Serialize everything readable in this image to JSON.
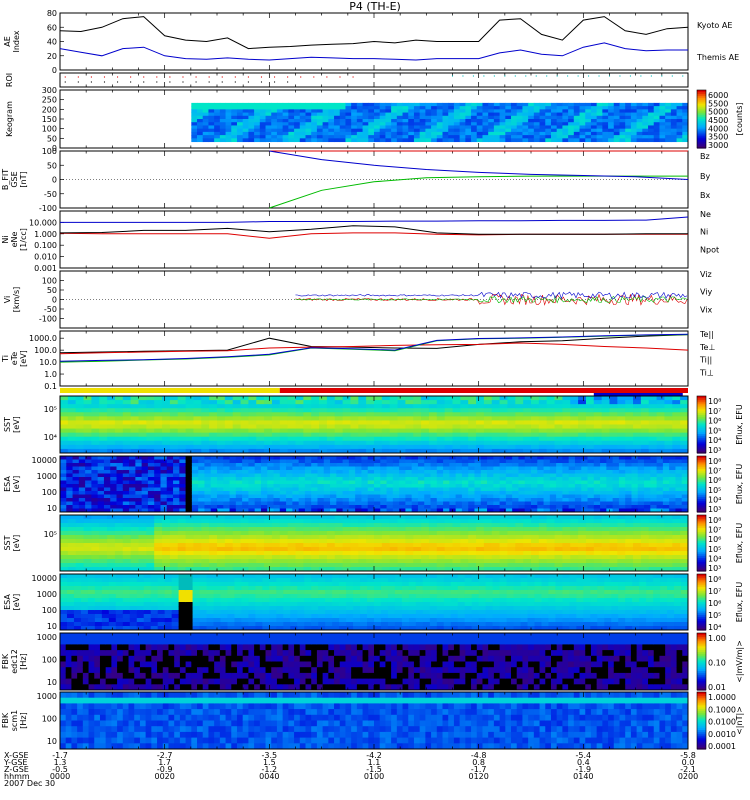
{
  "title": "P4 (TH-E)",
  "colors": {
    "black": "#000000",
    "blue": "#0000cc",
    "red": "#dd0000",
    "green": "#00bb00",
    "cyan": "#00bbbb",
    "yellow": "#f0e000",
    "grey": "#888888"
  },
  "time_axis": {
    "row_labels": [
      "X-GSE",
      "Y-GSE",
      "Z-GSE",
      "hhmm",
      "2007 Dec 30"
    ],
    "ticks": [
      {
        "x_gse": "-1.7",
        "y_gse": "1.3",
        "z_gse": "-0.5",
        "hhmm": "0000"
      },
      {
        "x_gse": "-2.7",
        "y_gse": "1.7",
        "z_gse": "-0.9",
        "hhmm": "0020"
      },
      {
        "x_gse": "-3.5",
        "y_gse": "1.5",
        "z_gse": "-1.2",
        "hhmm": "0040"
      },
      {
        "x_gse": "-4.2",
        "y_gse": "1.1",
        "z_gse": "-1.5",
        "hhmm": "0100"
      },
      {
        "x_gse": "-4.8",
        "y_gse": "0.8",
        "z_gse": "-1.7",
        "hhmm": "0120"
      },
      {
        "x_gse": "-5.4",
        "y_gse": "0.4",
        "z_gse": "-1.9",
        "hhmm": "0140"
      },
      {
        "x_gse": "-5.8",
        "y_gse": "0.0",
        "z_gse": "-2.1",
        "hhmm": "0200"
      }
    ]
  },
  "chart_data": [
    {
      "id": "ae",
      "type": "line",
      "ylabel": "AE Index",
      "ylim": [
        0,
        80
      ],
      "yticks": [
        "0",
        "20",
        "40",
        "60",
        "80"
      ],
      "x": [
        0,
        4,
        8,
        12,
        16,
        20,
        24,
        28,
        32,
        36,
        40,
        44,
        48,
        52,
        56,
        60,
        64,
        68,
        72,
        76,
        80,
        84,
        88,
        92,
        96,
        100,
        104,
        108,
        112,
        116,
        120
      ],
      "series": [
        {
          "name": "Kyoto AE",
          "color": "#000000",
          "values": [
            55,
            54,
            60,
            72,
            75,
            48,
            42,
            40,
            45,
            30,
            32,
            33,
            35,
            36,
            37,
            40,
            38,
            42,
            40,
            40,
            40,
            70,
            72,
            50,
            42,
            70,
            75,
            55,
            50,
            58,
            60
          ]
        },
        {
          "name": "Themis AE",
          "color": "#0000cc",
          "values": [
            30,
            25,
            20,
            30,
            32,
            20,
            16,
            15,
            17,
            15,
            14,
            16,
            18,
            17,
            16,
            16,
            15,
            14,
            16,
            16,
            16,
            24,
            28,
            22,
            20,
            32,
            38,
            30,
            27,
            28,
            28
          ]
        }
      ]
    },
    {
      "id": "roi",
      "type": "scatter",
      "ylabel": "ROI"
    },
    {
      "id": "keogram",
      "type": "heatmap",
      "ylabel": "Keogram",
      "ylim": [
        0,
        300
      ],
      "yticks": [
        "0",
        "50",
        "100",
        "150",
        "200",
        "250",
        "300"
      ],
      "colorbar": {
        "label": "[counts]",
        "ticks": [
          "6000",
          "5500",
          "5000",
          "4500",
          "4000",
          "3500",
          "3000"
        ]
      }
    },
    {
      "id": "bfit",
      "type": "line",
      "ylabel": "B_FIT GSE [nT]",
      "ylim": [
        -100,
        100
      ],
      "yticks": [
        "-100",
        "-50",
        "0",
        "50",
        "100"
      ],
      "x": [
        40,
        50,
        60,
        70,
        80,
        90,
        100,
        110,
        120
      ],
      "series": [
        {
          "name": "Bz",
          "color": "#dd0000",
          "values": [
            100,
            100,
            100,
            100,
            100,
            100,
            100,
            100,
            100
          ]
        },
        {
          "name": "By",
          "color": "#00bb00",
          "values": [
            -100,
            -38,
            -8,
            6,
            10,
            12,
            12,
            12,
            12
          ]
        },
        {
          "name": "Bx",
          "color": "#0000cc",
          "values": [
            100,
            70,
            50,
            35,
            25,
            18,
            14,
            10,
            0
          ]
        }
      ]
    },
    {
      "id": "density",
      "type": "line",
      "ylabel": "Ni eNe [1/cc]",
      "yscale": "log",
      "ylim": [
        0.001,
        100
      ],
      "yticks": [
        "0.001",
        "0.010",
        "0.100",
        "1.000",
        "10.000"
      ],
      "x": [
        0,
        8,
        16,
        24,
        32,
        40,
        48,
        56,
        64,
        72,
        80,
        88,
        96,
        104,
        112,
        120
      ],
      "series": [
        {
          "name": "Ne",
          "color": "#dd0000",
          "values": [
            1.1,
            1.0,
            1.0,
            1.0,
            1.0,
            0.4,
            1.0,
            1.2,
            1.2,
            0.9,
            0.8,
            0.9,
            0.9,
            0.9,
            0.9,
            0.9
          ]
        },
        {
          "name": "Ni",
          "color": "#000000",
          "values": [
            1.2,
            1.3,
            2.0,
            2.0,
            3.0,
            1.5,
            2.5,
            5.0,
            4.0,
            1.2,
            0.9,
            0.9,
            0.9,
            0.9,
            1.0,
            1.0
          ]
        },
        {
          "name": "Npot",
          "color": "#0000cc",
          "values": [
            10,
            10,
            10,
            10,
            10,
            12,
            12,
            12,
            13,
            13,
            14,
            14,
            15,
            15,
            16,
            30
          ]
        }
      ]
    },
    {
      "id": "velocity",
      "type": "line",
      "ylabel": "Vi [km/s]",
      "ylim": [
        -150,
        150
      ],
      "yticks": [
        "-100",
        "-50",
        "0",
        "50",
        "100"
      ],
      "x": [
        45,
        55,
        65,
        75,
        85,
        95,
        105,
        115,
        120
      ],
      "series": [
        {
          "name": "Viz",
          "color": "#dd0000",
          "values": [
            10,
            5,
            -5,
            0,
            -10,
            -5,
            0,
            -5,
            0
          ]
        },
        {
          "name": "Viy",
          "color": "#00bb00",
          "values": [
            5,
            10,
            5,
            0,
            5,
            0,
            5,
            0,
            0
          ]
        },
        {
          "name": "Vix",
          "color": "#0000cc",
          "values": [
            20,
            25,
            25,
            30,
            25,
            25,
            20,
            20,
            20
          ]
        }
      ]
    },
    {
      "id": "temperature",
      "type": "line",
      "ylabel": "Ti eTe [eV]",
      "yscale": "log",
      "ylim": [
        0.1,
        4000
      ],
      "yticks": [
        "0.1",
        "1.0",
        "10.0",
        "100.0",
        "1000.0"
      ],
      "x": [
        0,
        8,
        16,
        24,
        32,
        40,
        48,
        56,
        64,
        72,
        80,
        88,
        96,
        104,
        112,
        120
      ],
      "series": [
        {
          "name": "Te||",
          "color": "#000000",
          "values": [
            60,
            70,
            80,
            90,
            100,
            1000,
            200,
            180,
            150,
            140,
            300,
            500,
            600,
            1000,
            1500,
            2000
          ]
        },
        {
          "name": "Te⊥",
          "color": "#dd0000",
          "values": [
            50,
            60,
            70,
            80,
            90,
            150,
            180,
            200,
            250,
            280,
            300,
            400,
            300,
            200,
            150,
            100
          ]
        },
        {
          "name": "Ti||",
          "color": "#00bb00",
          "values": [
            10,
            12,
            15,
            18,
            25,
            40,
            150,
            120,
            90,
            600,
            900,
            1000,
            1200,
            1500,
            1800,
            2000
          ]
        },
        {
          "name": "Ti⊥",
          "color": "#0000cc",
          "values": [
            12,
            14,
            16,
            20,
            28,
            45,
            160,
            130,
            100,
            650,
            950,
            1050,
            1250,
            1600,
            1900,
            2100
          ]
        }
      ]
    },
    {
      "id": "sst_e",
      "type": "heatmap",
      "ylabel": "SST [eV]",
      "yticks": [
        "10⁴",
        "10⁵"
      ],
      "colorbar": {
        "label": "Eflux, EFU",
        "ticks": [
          "10⁸",
          "10⁷",
          "10⁶",
          "10⁵",
          "10⁴",
          "10³"
        ]
      }
    },
    {
      "id": "esa_e",
      "type": "heatmap",
      "ylabel": "ESA [eV]",
      "yticks": [
        "10",
        "100",
        "1000",
        "10000"
      ],
      "colorbar": {
        "label": "Eflux, EFU",
        "ticks": [
          "10⁸",
          "10⁷",
          "10⁶",
          "10⁵",
          "10⁴",
          "10³"
        ]
      }
    },
    {
      "id": "sst_i",
      "type": "heatmap",
      "ylabel": "SST [eV]",
      "yticks": [
        "10⁵"
      ],
      "colorbar": {
        "label": "Eflux, EFU",
        "ticks": [
          "10⁸",
          "10⁷",
          "10⁶",
          "10⁵",
          "10⁴",
          "10³"
        ]
      }
    },
    {
      "id": "esa_i",
      "type": "heatmap",
      "ylabel": "ESA [eV]",
      "yticks": [
        "10",
        "100",
        "1000",
        "10000"
      ],
      "colorbar": {
        "label": "Eflux, EFU",
        "ticks": [
          "10⁸",
          "10⁷",
          "10⁶",
          "10⁵",
          "10⁴"
        ]
      }
    },
    {
      "id": "fbk_edc",
      "type": "heatmap",
      "ylabel": "FBK edc12 [Hz]",
      "yticks": [
        "10",
        "100",
        "1000"
      ],
      "colorbar": {
        "label": "<|mV/m|>",
        "ticks": [
          "1.00",
          "0.10",
          "0.01"
        ]
      }
    },
    {
      "id": "fbk_scm",
      "type": "heatmap",
      "ylabel": "FBK scm1 [Hz]",
      "yticks": [
        "10",
        "100",
        "1000"
      ],
      "colorbar": {
        "label": "<|nT|>",
        "ticks": [
          "1.0000",
          "0.1000",
          "0.0100",
          "0.0010",
          "0.0001"
        ]
      }
    }
  ]
}
